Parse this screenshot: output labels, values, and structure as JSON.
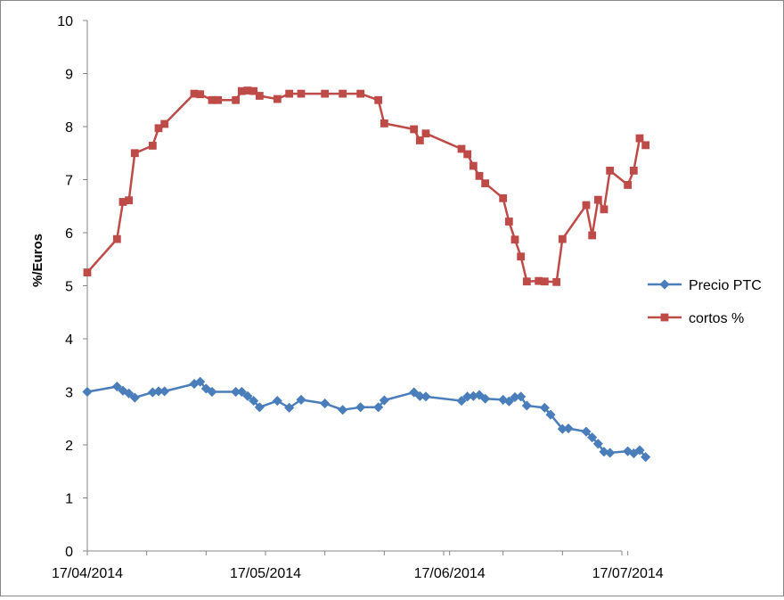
{
  "chart_data": {
    "type": "line",
    "ylabel": "%/Euros",
    "xlabel": "",
    "title": "",
    "ylim": [
      0,
      10
    ],
    "yticks": [
      "0",
      "1",
      "2",
      "3",
      "4",
      "5",
      "6",
      "7",
      "8",
      "9",
      "10"
    ],
    "xlim": [
      "2014-04-17",
      "2014-07-17"
    ],
    "xticks": [
      "17/04/2014",
      "17/05/2014",
      "17/06/2014",
      "17/07/2014"
    ],
    "grid": false,
    "legend_position": "right",
    "series": [
      {
        "name": "Precio PTC",
        "color": "#4a7ebb",
        "marker": "diamond",
        "points": [
          [
            "2014-04-17",
            3.0
          ],
          [
            "2014-04-22",
            3.1
          ],
          [
            "2014-04-23",
            3.02
          ],
          [
            "2014-04-24",
            2.97
          ],
          [
            "2014-04-25",
            2.89
          ],
          [
            "2014-04-28",
            2.99
          ],
          [
            "2014-04-29",
            3.01
          ],
          [
            "2014-04-30",
            3.01
          ],
          [
            "2014-05-05",
            3.15
          ],
          [
            "2014-05-06",
            3.19
          ],
          [
            "2014-05-07",
            3.06
          ],
          [
            "2014-05-08",
            3.0
          ],
          [
            "2014-05-12",
            3.0
          ],
          [
            "2014-05-13",
            3.0
          ],
          [
            "2014-05-14",
            2.92
          ],
          [
            "2014-05-15",
            2.83
          ],
          [
            "2014-05-16",
            2.71
          ],
          [
            "2014-05-19",
            2.83
          ],
          [
            "2014-05-21",
            2.7
          ],
          [
            "2014-05-23",
            2.85
          ],
          [
            "2014-05-27",
            2.78
          ],
          [
            "2014-05-30",
            2.66
          ],
          [
            "2014-06-02",
            2.71
          ],
          [
            "2014-06-05",
            2.71
          ],
          [
            "2014-06-06",
            2.84
          ],
          [
            "2014-06-11",
            2.99
          ],
          [
            "2014-06-12",
            2.92
          ],
          [
            "2014-06-13",
            2.91
          ],
          [
            "2014-06-19",
            2.83
          ],
          [
            "2014-06-20",
            2.91
          ],
          [
            "2014-06-21",
            2.92
          ],
          [
            "2014-06-22",
            2.94
          ],
          [
            "2014-06-23",
            2.87
          ],
          [
            "2014-06-26",
            2.85
          ],
          [
            "2014-06-27",
            2.82
          ],
          [
            "2014-06-28",
            2.9
          ],
          [
            "2014-06-29",
            2.91
          ],
          [
            "2014-06-30",
            2.74
          ],
          [
            "2014-07-03",
            2.7
          ],
          [
            "2014-07-04",
            2.57
          ],
          [
            "2014-07-06",
            2.3
          ],
          [
            "2014-07-07",
            2.31
          ],
          [
            "2014-07-10",
            2.25
          ],
          [
            "2014-07-11",
            2.14
          ],
          [
            "2014-07-12",
            2.02
          ],
          [
            "2014-07-13",
            1.87
          ],
          [
            "2014-07-14",
            1.85
          ],
          [
            "2014-07-17",
            1.88
          ],
          [
            "2014-07-18",
            1.84
          ],
          [
            "2014-07-19",
            1.9
          ],
          [
            "2014-07-20",
            1.77
          ]
        ]
      },
      {
        "name": "cortos %",
        "color": "#be4b48",
        "marker": "square",
        "points": [
          [
            "2014-04-17",
            5.25
          ],
          [
            "2014-04-22",
            5.88
          ],
          [
            "2014-04-23",
            6.58
          ],
          [
            "2014-04-24",
            6.61
          ],
          [
            "2014-04-25",
            7.5
          ],
          [
            "2014-04-28",
            7.64
          ],
          [
            "2014-04-29",
            7.97
          ],
          [
            "2014-04-30",
            8.05
          ],
          [
            "2014-05-05",
            8.62
          ],
          [
            "2014-05-06",
            8.61
          ],
          [
            "2014-05-08",
            8.5
          ],
          [
            "2014-05-09",
            8.5
          ],
          [
            "2014-05-12",
            8.5
          ],
          [
            "2014-05-13",
            8.67
          ],
          [
            "2014-05-14",
            8.68
          ],
          [
            "2014-05-15",
            8.67
          ],
          [
            "2014-05-16",
            8.58
          ],
          [
            "2014-05-19",
            8.52
          ],
          [
            "2014-05-21",
            8.62
          ],
          [
            "2014-05-23",
            8.62
          ],
          [
            "2014-05-27",
            8.62
          ],
          [
            "2014-05-30",
            8.62
          ],
          [
            "2014-06-02",
            8.62
          ],
          [
            "2014-06-05",
            8.5
          ],
          [
            "2014-06-06",
            8.06
          ],
          [
            "2014-06-11",
            7.95
          ],
          [
            "2014-06-12",
            7.74
          ],
          [
            "2014-06-13",
            7.87
          ],
          [
            "2014-06-19",
            7.58
          ],
          [
            "2014-06-20",
            7.48
          ],
          [
            "2014-06-21",
            7.26
          ],
          [
            "2014-06-22",
            7.07
          ],
          [
            "2014-06-23",
            6.93
          ],
          [
            "2014-06-26",
            6.65
          ],
          [
            "2014-06-27",
            6.21
          ],
          [
            "2014-06-28",
            5.87
          ],
          [
            "2014-06-29",
            5.55
          ],
          [
            "2014-06-30",
            5.08
          ],
          [
            "2014-07-02",
            5.09
          ],
          [
            "2014-07-03",
            5.08
          ],
          [
            "2014-07-05",
            5.07
          ],
          [
            "2014-07-06",
            5.88
          ],
          [
            "2014-07-10",
            6.52
          ],
          [
            "2014-07-11",
            5.95
          ],
          [
            "2014-07-12",
            6.62
          ],
          [
            "2014-07-13",
            6.44
          ],
          [
            "2014-07-14",
            7.17
          ],
          [
            "2014-07-17",
            6.9
          ],
          [
            "2014-07-18",
            7.17
          ],
          [
            "2014-07-19",
            7.78
          ],
          [
            "2014-07-20",
            7.65
          ]
        ]
      }
    ]
  }
}
